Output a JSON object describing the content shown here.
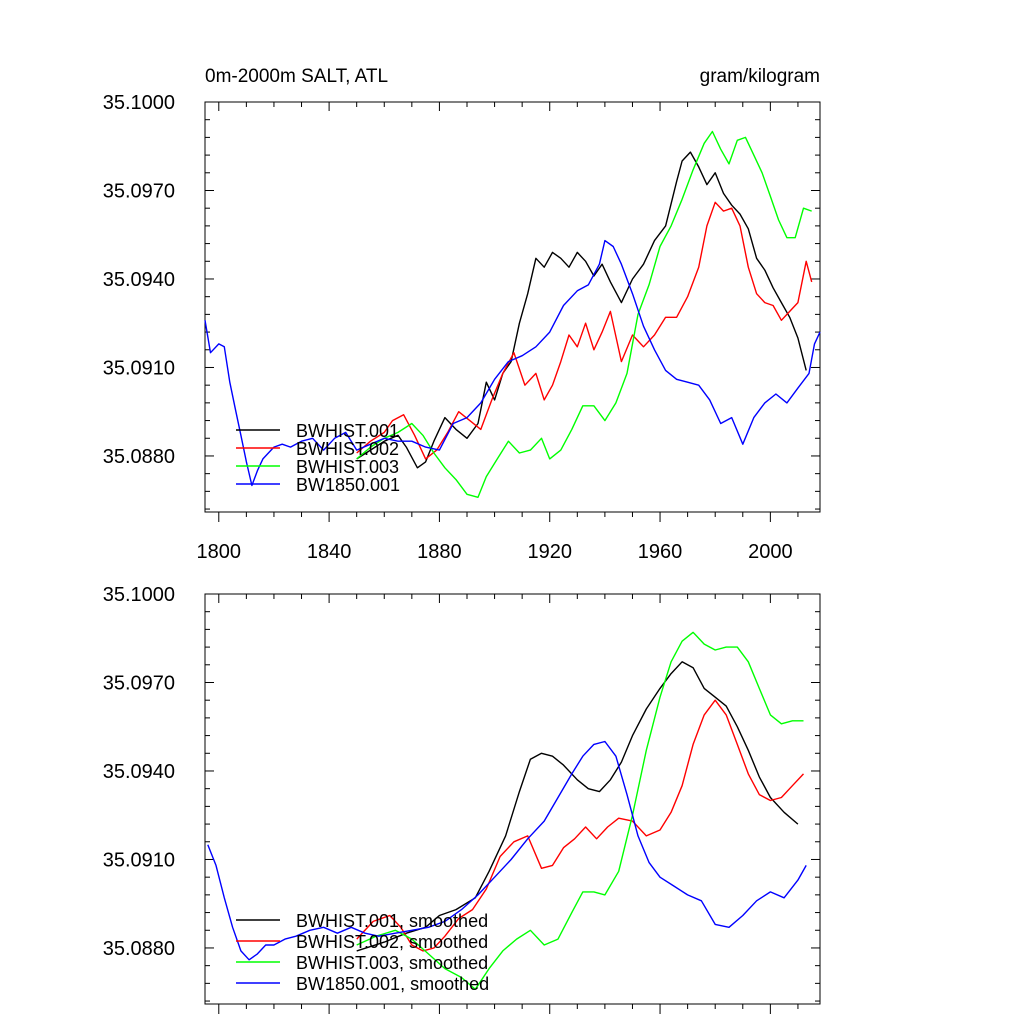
{
  "colors": {
    "black": "#000000",
    "red": "#ff0000",
    "green": "#00ff00",
    "blue": "#0000ff"
  },
  "chart_data": [
    {
      "type": "line",
      "title_left": "0m-2000m SALT, ATL",
      "title_right": "gram/kilogram",
      "xlim": [
        1795,
        2018
      ],
      "ylim": [
        35.0861,
        35.1
      ],
      "xticks": [
        1800,
        1840,
        1880,
        1920,
        1960,
        2000
      ],
      "xtick_labels": [
        "1800",
        "1840",
        "1880",
        "1920",
        "1960",
        "2000"
      ],
      "yticks": [
        35.088,
        35.091,
        35.094,
        35.097,
        35.1
      ],
      "ytick_labels": [
        "35.0880",
        "35.0910",
        "35.0940",
        "35.0970",
        "35.1000"
      ],
      "series": [
        {
          "name": "BWHIST.001",
          "color": "#000000",
          "x": [
            1850,
            1855,
            1860,
            1865,
            1868,
            1872,
            1875,
            1878,
            1882,
            1886,
            1890,
            1894,
            1897,
            1900,
            1903,
            1906,
            1909,
            1912,
            1915,
            1918,
            1921,
            1924,
            1927,
            1930,
            1933,
            1936,
            1939,
            1942,
            1946,
            1950,
            1954,
            1958,
            1962,
            1966,
            1968,
            1971,
            1974,
            1977,
            1980,
            1983,
            1986,
            1989,
            1992,
            1995,
            1998,
            2001,
            2004,
            2007,
            2010,
            2013
          ],
          "y": [
            35.0879,
            35.0882,
            35.0885,
            35.0887,
            35.0883,
            35.0876,
            35.0878,
            35.0885,
            35.0893,
            35.0889,
            35.0886,
            35.0891,
            35.0905,
            35.0899,
            35.0908,
            35.0912,
            35.0925,
            35.0935,
            35.0947,
            35.0944,
            35.0949,
            35.0947,
            35.0944,
            35.0949,
            35.0946,
            35.0941,
            35.0945,
            35.0939,
            35.0932,
            35.094,
            35.0945,
            35.0953,
            35.0958,
            35.0973,
            35.098,
            35.0983,
            35.0978,
            35.0972,
            35.0976,
            35.0969,
            35.0965,
            35.0962,
            35.0957,
            35.0947,
            35.0943,
            35.0937,
            35.0932,
            35.0927,
            35.092,
            35.0909
          ]
        },
        {
          "name": "BWHIST.002",
          "color": "#ff0000",
          "x": [
            1850,
            1855,
            1860,
            1863,
            1867,
            1871,
            1875,
            1879,
            1883,
            1887,
            1891,
            1895,
            1899,
            1903,
            1907,
            1911,
            1915,
            1918,
            1921,
            1924,
            1927,
            1930,
            1933,
            1936,
            1939,
            1942,
            1946,
            1950,
            1954,
            1958,
            1962,
            1966,
            1970,
            1974,
            1977,
            1980,
            1983,
            1986,
            1989,
            1992,
            1995,
            1998,
            2001,
            2004,
            2007,
            2010,
            2013,
            2015
          ],
          "y": [
            35.0881,
            35.0885,
            35.0888,
            35.0892,
            35.0894,
            35.0887,
            35.0879,
            35.0882,
            35.0888,
            35.0895,
            35.0892,
            35.0889,
            35.0899,
            35.0908,
            35.0915,
            35.0904,
            35.0908,
            35.0899,
            35.0904,
            35.0912,
            35.0921,
            35.0917,
            35.0925,
            35.0916,
            35.0922,
            35.0929,
            35.0912,
            35.0921,
            35.0917,
            35.0921,
            35.0927,
            35.0927,
            35.0934,
            35.0944,
            35.0958,
            35.0966,
            35.0963,
            35.0964,
            35.0958,
            35.0944,
            35.0935,
            35.0932,
            35.0931,
            35.0926,
            35.0929,
            35.0932,
            35.0946,
            35.0939
          ]
        },
        {
          "name": "BWHIST.003",
          "color": "#00ff00",
          "x": [
            1850,
            1855,
            1860,
            1865,
            1870,
            1874,
            1878,
            1882,
            1886,
            1890,
            1894,
            1897,
            1901,
            1905,
            1909,
            1913,
            1917,
            1920,
            1924,
            1928,
            1932,
            1936,
            1940,
            1944,
            1948,
            1952,
            1956,
            1960,
            1964,
            1968,
            1972,
            1976,
            1979,
            1982,
            1985,
            1988,
            1991,
            1994,
            1997,
            2000,
            2003,
            2006,
            2009,
            2012,
            2015
          ],
          "y": [
            35.0879,
            35.0883,
            35.0886,
            35.0888,
            35.0891,
            35.0887,
            35.0881,
            35.0876,
            35.0872,
            35.0867,
            35.0866,
            35.0873,
            35.0879,
            35.0885,
            35.0881,
            35.0882,
            35.0886,
            35.0879,
            35.0882,
            35.0889,
            35.0897,
            35.0897,
            35.0892,
            35.0898,
            35.0908,
            35.0928,
            35.0938,
            35.0951,
            35.0958,
            35.0967,
            35.0977,
            35.0986,
            35.099,
            35.0984,
            35.0979,
            35.0987,
            35.0988,
            35.0982,
            35.0976,
            35.0968,
            35.096,
            35.0954,
            35.0954,
            35.0964,
            35.0963
          ]
        },
        {
          "name": "BW1850.001",
          "color": "#0000ff",
          "x": [
            1795,
            1797,
            1800,
            1802,
            1804,
            1806,
            1808,
            1810,
            1812,
            1814,
            1816,
            1818,
            1820,
            1823,
            1826,
            1830,
            1834,
            1838,
            1842,
            1846,
            1850,
            1855,
            1860,
            1865,
            1870,
            1875,
            1880,
            1885,
            1890,
            1895,
            1900,
            1905,
            1910,
            1915,
            1920,
            1925,
            1930,
            1934,
            1938,
            1940,
            1943,
            1946,
            1950,
            1954,
            1958,
            1962,
            1966,
            1970,
            1974,
            1978,
            1982,
            1986,
            1990,
            1994,
            1998,
            2002,
            2006,
            2010,
            2014,
            2016,
            2018
          ],
          "y": [
            35.0926,
            35.0915,
            35.0918,
            35.0917,
            35.0905,
            35.0896,
            35.0887,
            35.0878,
            35.087,
            35.0875,
            35.0879,
            35.0881,
            35.0883,
            35.0884,
            35.0883,
            35.0885,
            35.0886,
            35.0882,
            35.0886,
            35.0888,
            35.0882,
            35.0884,
            35.0886,
            35.0885,
            35.0885,
            35.0883,
            35.0882,
            35.0891,
            35.0893,
            35.0898,
            35.0906,
            35.0912,
            35.0914,
            35.0917,
            35.0922,
            35.0931,
            35.0936,
            35.0938,
            35.0945,
            35.0953,
            35.0951,
            35.0945,
            35.0935,
            35.0924,
            35.0916,
            35.0909,
            35.0906,
            35.0905,
            35.0904,
            35.0899,
            35.0891,
            35.0893,
            35.0884,
            35.0893,
            35.0898,
            35.0901,
            35.0898,
            35.0903,
            35.0908,
            35.0918,
            35.0922
          ]
        }
      ]
    },
    {
      "type": "line",
      "xlim": [
        1795,
        2018
      ],
      "ylim": [
        35.0861,
        35.1
      ],
      "xticks": [
        1800,
        1840,
        1880,
        1920,
        1960,
        2000
      ],
      "yticks": [
        35.088,
        35.091,
        35.094,
        35.097,
        35.1
      ],
      "ytick_labels": [
        "35.0880",
        "35.0910",
        "35.0940",
        "35.0970",
        "35.1000"
      ],
      "series": [
        {
          "name": "BWHIST.001, smoothed",
          "color": "#000000",
          "x": [
            1850,
            1860,
            1868,
            1875,
            1880,
            1886,
            1893,
            1898,
            1904,
            1909,
            1913,
            1917,
            1921,
            1925,
            1930,
            1934,
            1938,
            1942,
            1946,
            1950,
            1955,
            1960,
            1964,
            1968,
            1972,
            1976,
            1980,
            1984,
            1988,
            1992,
            1996,
            2000,
            2005,
            2010
          ],
          "y": [
            35.0879,
            35.0882,
            35.0885,
            35.0887,
            35.0891,
            35.0893,
            35.0897,
            35.0906,
            35.0918,
            35.0933,
            35.0944,
            35.0946,
            35.0945,
            35.0942,
            35.0937,
            35.0934,
            35.0933,
            35.0937,
            35.0943,
            35.0952,
            35.0961,
            35.0968,
            35.0973,
            35.0977,
            35.0975,
            35.0968,
            35.0965,
            35.0962,
            35.0955,
            35.0947,
            35.0938,
            35.0931,
            35.0926,
            35.0922
          ]
        },
        {
          "name": "BWHIST.002, smoothed",
          "color": "#ff0000",
          "x": [
            1850,
            1856,
            1862,
            1866,
            1870,
            1874,
            1878,
            1882,
            1887,
            1892,
            1897,
            1902,
            1907,
            1912,
            1917,
            1921,
            1925,
            1929,
            1933,
            1937,
            1941,
            1945,
            1950,
            1955,
            1960,
            1964,
            1968,
            1972,
            1976,
            1980,
            1984,
            1988,
            1992,
            1996,
            2000,
            2004,
            2008,
            2012
          ],
          "y": [
            35.0883,
            35.0889,
            35.0891,
            35.0887,
            35.0881,
            35.0879,
            35.088,
            35.0884,
            35.089,
            35.0893,
            35.09,
            35.0911,
            35.0916,
            35.0918,
            35.0907,
            35.0908,
            35.0914,
            35.0917,
            35.0921,
            35.0917,
            35.0921,
            35.0924,
            35.0923,
            35.0918,
            35.092,
            35.0926,
            35.0935,
            35.0949,
            35.0959,
            35.0964,
            35.0959,
            35.0949,
            35.0939,
            35.0932,
            35.093,
            35.0931,
            35.0935,
            35.0939
          ]
        },
        {
          "name": "BWHIST.003, smoothed",
          "color": "#00ff00",
          "x": [
            1850,
            1857,
            1864,
            1870,
            1876,
            1882,
            1888,
            1893,
            1898,
            1903,
            1908,
            1913,
            1918,
            1923,
            1928,
            1932,
            1936,
            1940,
            1945,
            1950,
            1955,
            1960,
            1964,
            1968,
            1972,
            1976,
            1980,
            1984,
            1988,
            1992,
            1996,
            2000,
            2004,
            2008,
            2012
          ],
          "y": [
            35.0881,
            35.0884,
            35.0886,
            35.0883,
            35.0878,
            35.0873,
            35.087,
            35.0866,
            35.0873,
            35.0879,
            35.0883,
            35.0886,
            35.0881,
            35.0883,
            35.0892,
            35.0899,
            35.0899,
            35.0898,
            35.0906,
            35.0925,
            35.0947,
            35.0965,
            35.0977,
            35.0984,
            35.0987,
            35.0983,
            35.0981,
            35.0982,
            35.0982,
            35.0977,
            35.0968,
            35.0959,
            35.0956,
            35.0957,
            35.0957
          ]
        },
        {
          "name": "BW1850.001, smoothed",
          "color": "#0000ff",
          "x": [
            1796,
            1799,
            1802,
            1805,
            1808,
            1811,
            1814,
            1817,
            1820,
            1824,
            1828,
            1833,
            1838,
            1843,
            1848,
            1853,
            1858,
            1864,
            1870,
            1876,
            1882,
            1888,
            1894,
            1900,
            1906,
            1912,
            1918,
            1923,
            1928,
            1932,
            1936,
            1940,
            1944,
            1948,
            1952,
            1956,
            1960,
            1965,
            1970,
            1975,
            1980,
            1985,
            1990,
            1995,
            2000,
            2005,
            2010,
            2013
          ],
          "y": [
            35.0915,
            35.0908,
            35.0897,
            35.0887,
            35.0879,
            35.0876,
            35.0878,
            35.0881,
            35.0881,
            35.0883,
            35.0884,
            35.0886,
            35.0887,
            35.0885,
            35.0887,
            35.0885,
            35.0884,
            35.0885,
            35.0886,
            35.0887,
            35.0889,
            35.0893,
            35.0898,
            35.0904,
            35.091,
            35.0917,
            35.0923,
            35.0931,
            35.0939,
            35.0945,
            35.0949,
            35.095,
            35.0945,
            35.0932,
            35.0918,
            35.0909,
            35.0904,
            35.0901,
            35.0898,
            35.0896,
            35.0888,
            35.0887,
            35.0891,
            35.0896,
            35.0899,
            35.0897,
            35.0903,
            35.0908
          ]
        }
      ]
    }
  ]
}
